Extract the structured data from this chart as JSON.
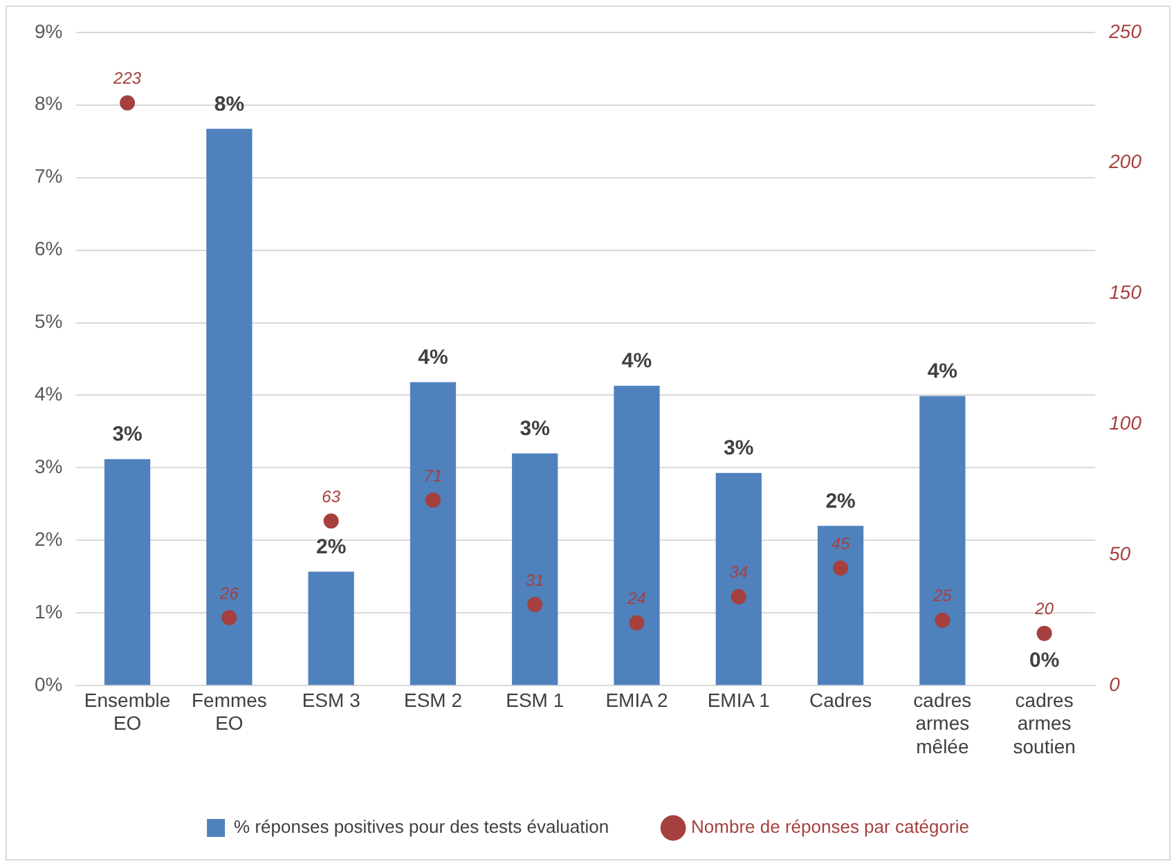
{
  "chart_data": {
    "type": "bar",
    "categories": [
      "Ensemble EO",
      "Femmes EO",
      "ESM 3",
      "ESM 2",
      "ESM 1",
      "EMIA 2",
      "EMIA 1",
      "Cadres",
      "cadres armes mêlée",
      "cadres armes soutien"
    ],
    "series": [
      {
        "name": "% réponses positives pour des tests évaluation",
        "color": "#4f81bd",
        "values": [
          3.12,
          7.67,
          1.57,
          4.18,
          3.2,
          4.13,
          2.93,
          2.2,
          3.99,
          0
        ],
        "value_labels": [
          "3%",
          "8%",
          "2%",
          "4%",
          "3%",
          "4%",
          "3%",
          "2%",
          "4%",
          "0%"
        ]
      },
      {
        "name": "Nombre de réponses par catégorie",
        "type": "scatter",
        "axis": "y2",
        "color": "#a5403e",
        "x": [
          "Ensemble EO",
          "Femmes EO",
          "ESM 3",
          "ESM 2",
          "ESM 1",
          "EMIA 2",
          "EMIA 1",
          "Cadres",
          "cadres armes mêlée",
          "cadres armes soutien"
        ],
        "values": [
          223,
          26,
          63,
          71,
          31,
          24,
          34,
          45,
          25,
          20
        ],
        "value_labels": [
          "223",
          "26",
          "63",
          "71",
          "31",
          "24",
          "34",
          "45",
          "25",
          "20"
        ]
      }
    ],
    "ylim": [
      0,
      9
    ],
    "yticks": [
      {
        "value": 0,
        "label": "0%"
      },
      {
        "value": 1,
        "label": "1%"
      },
      {
        "value": 2,
        "label": "2%"
      },
      {
        "value": 3,
        "label": "3%"
      },
      {
        "value": 4,
        "label": "4%"
      },
      {
        "value": 5,
        "label": "5%"
      },
      {
        "value": 6,
        "label": "6%"
      },
      {
        "value": 7,
        "label": "7%"
      },
      {
        "value": 8,
        "label": "8%"
      },
      {
        "value": 9,
        "label": "9%"
      }
    ],
    "y2lim": [
      0,
      250
    ],
    "y2ticks": [
      0,
      50,
      100,
      150,
      200,
      250
    ],
    "grid": "y",
    "legend": "bottom",
    "marker": "circle"
  }
}
